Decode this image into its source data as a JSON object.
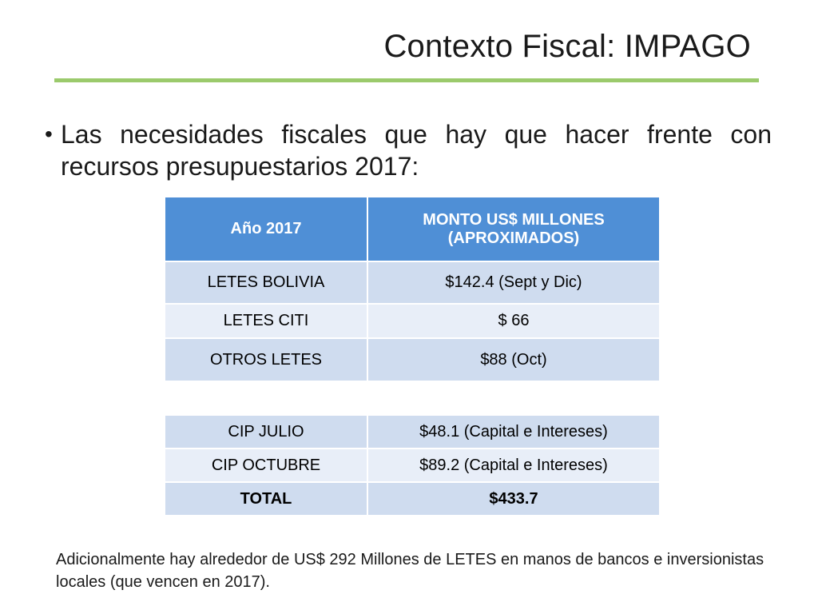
{
  "slide": {
    "title": "Contexto Fiscal: IMPAGO",
    "bullet_symbol": "•",
    "bullet_text": "Las necesidades fiscales que hay que hacer frente con recursos presupuestarios 2017:",
    "footnote": "Adicionalmente hay alrededor de US$ 292 Millones de LETES en manos de bancos e inversionistas locales (que vencen en 2017)."
  },
  "table1": {
    "headers": [
      "Año 2017",
      "MONTO US$ MILLONES (APROXIMADOS)"
    ],
    "rows": [
      [
        "LETES BOLIVIA",
        "$142.4 (Sept y Dic)"
      ],
      [
        "LETES CITI",
        "$ 66"
      ],
      [
        "OTROS LETES",
        "$88  (Oct)"
      ]
    ]
  },
  "table2": {
    "rows": [
      [
        "CIP JULIO",
        "$48.1 (Capital e Intereses)"
      ],
      [
        "CIP OCTUBRE",
        "$89.2 (Capital e Intereses)"
      ],
      [
        "TOTAL",
        "$433.7"
      ]
    ]
  },
  "colors": {
    "title_rule": "#9bca6c",
    "table_header": "#4f8fd6",
    "row_dark": "#cfdcef",
    "row_light": "#e8eef8"
  }
}
